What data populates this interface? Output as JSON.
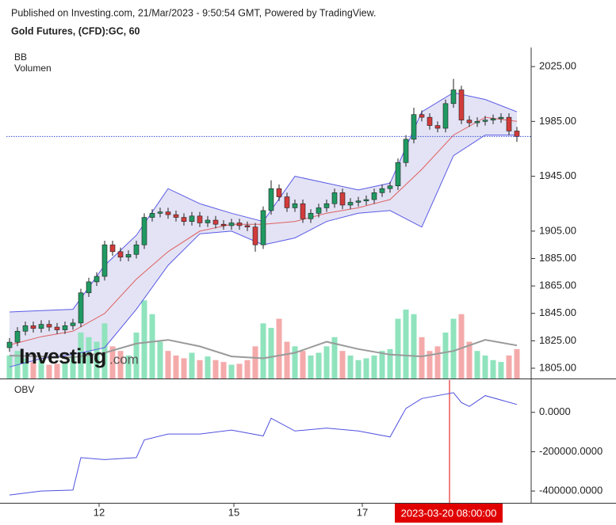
{
  "header": "Published on Investing.com, 21/Mar/2023 - 9:50:54 GMT, Powered by TradingView.",
  "watermark": [
    "Investing",
    ".com"
  ],
  "chart_data": [
    {
      "type": "candlestick",
      "title": "Gold Futures, (CFD):GC, 60",
      "legend": [
        "BB",
        "Volumen"
      ],
      "xlim": [
        -1.2,
        65.8
      ],
      "xticks": [
        {
          "value": 11.3,
          "label": "12"
        },
        {
          "value": 28.3,
          "label": "15"
        },
        {
          "value": 44.5,
          "label": "17"
        }
      ],
      "ylim": [
        1797.5,
        2038.9
      ],
      "yticks": [
        {
          "value": 1805,
          "label": "1805.00"
        },
        {
          "value": 1825,
          "label": "1825.00"
        },
        {
          "value": 1845,
          "label": "1845.00"
        },
        {
          "value": 1865,
          "label": "1865.00"
        },
        {
          "value": 1885,
          "label": "1885.00"
        },
        {
          "value": 1905,
          "label": "1905.00"
        },
        {
          "value": 1945,
          "label": "1945.00"
        },
        {
          "value": 1985,
          "label": "1985.00"
        },
        {
          "value": 2025,
          "label": "2025.00"
        }
      ],
      "up_color": "#1f9a62",
      "down_color": "#d23b3b",
      "ohlc": {
        "open": [
          1820,
          1824,
          1832,
          1836,
          1834,
          1837,
          1835,
          1833,
          1836,
          1838,
          1860,
          1868,
          1872,
          1895,
          1890,
          1886,
          1888,
          1895,
          1915,
          1918,
          1919,
          1917,
          1915,
          1912,
          1916,
          1911,
          1913,
          1910,
          1909,
          1911,
          1909,
          1908,
          1895,
          1920,
          1936,
          1930,
          1922,
          1925,
          1914,
          1918,
          1922,
          1925,
          1933,
          1924,
          1926,
          1927,
          1928,
          1933,
          1936,
          1938,
          1955,
          1972,
          1990,
          1988,
          1982,
          1980,
          1998,
          2008,
          1986,
          1984,
          1985,
          1986,
          1987,
          1988,
          1978
        ],
        "high": [
          1827,
          1835,
          1839,
          1839,
          1840,
          1840,
          1838,
          1839,
          1841,
          1863,
          1871,
          1875,
          1898,
          1898,
          1893,
          1891,
          1898,
          1918,
          1921,
          1922,
          1922,
          1920,
          1918,
          1919,
          1919,
          1916,
          1916,
          1913,
          1914,
          1914,
          1912,
          1911,
          1923,
          1942,
          1939,
          1933,
          1928,
          1928,
          1921,
          1925,
          1928,
          1936,
          1936,
          1929,
          1930,
          1931,
          1936,
          1939,
          1941,
          1958,
          1975,
          1995,
          1993,
          1991,
          1985,
          2001,
          2016,
          2011,
          1989,
          1988,
          1989,
          1990,
          1991,
          1991,
          1981
        ],
        "low": [
          1817,
          1821,
          1829,
          1831,
          1831,
          1832,
          1830,
          1830,
          1833,
          1835,
          1857,
          1865,
          1869,
          1887,
          1883,
          1883,
          1885,
          1892,
          1912,
          1915,
          1914,
          1912,
          1909,
          1909,
          1908,
          1908,
          1907,
          1906,
          1906,
          1906,
          1905,
          1890,
          1892,
          1917,
          1927,
          1919,
          1919,
          1911,
          1911,
          1915,
          1919,
          1922,
          1921,
          1921,
          1923,
          1924,
          1925,
          1930,
          1933,
          1935,
          1952,
          1969,
          1985,
          1979,
          1977,
          1977,
          1995,
          1983,
          1981,
          1981,
          1982,
          1983,
          1984,
          1975,
          1970
        ],
        "close": [
          1824,
          1832,
          1836,
          1834,
          1837,
          1835,
          1833,
          1836,
          1838,
          1860,
          1868,
          1872,
          1895,
          1890,
          1886,
          1888,
          1895,
          1915,
          1918,
          1919,
          1917,
          1915,
          1912,
          1916,
          1911,
          1913,
          1910,
          1909,
          1911,
          1909,
          1908,
          1895,
          1920,
          1936,
          1930,
          1922,
          1925,
          1914,
          1918,
          1922,
          1925,
          1933,
          1924,
          1926,
          1927,
          1928,
          1933,
          1936,
          1938,
          1955,
          1972,
          1990,
          1988,
          1982,
          1980,
          1998,
          2008,
          1986,
          1984,
          1985,
          1986,
          1987,
          1988,
          1978,
          1974
        ]
      },
      "last_line_color": "#3a4fd6",
      "bb": {
        "x": [
          0,
          4,
          8,
          12,
          16,
          20,
          24,
          28,
          32,
          36,
          40,
          44,
          48,
          52,
          56,
          60,
          64
        ],
        "upper": [
          1846,
          1847,
          1848,
          1880,
          1902,
          1936,
          1925,
          1918,
          1912,
          1945,
          1940,
          1935,
          1940,
          1992,
          2006,
          2001,
          1992
        ],
        "middle": [
          1822,
          1828,
          1832,
          1845,
          1870,
          1890,
          1905,
          1910,
          1910,
          1912,
          1918,
          1922,
          1928,
          1950,
          1975,
          1988,
          1985
        ],
        "lower": [
          1806,
          1812,
          1815,
          1820,
          1848,
          1880,
          1903,
          1905,
          1895,
          1900,
          1912,
          1918,
          1920,
          1908,
          1960,
          1975,
          1975
        ],
        "band_color": "#5a5ae6",
        "middle_color": "#e06060",
        "fill": "#dcdcf2"
      },
      "volume": {
        "vlim": [
          0,
          36000
        ],
        "up_color": "#8fe3bd",
        "down_color": "#f4aaaa",
        "values": [
          2500,
          3000,
          2200,
          1800,
          2000,
          1500,
          1600,
          1800,
          2500,
          5000,
          4500,
          4000,
          6000,
          3500,
          3000,
          2500,
          5000,
          8500,
          7000,
          4000,
          3000,
          2500,
          2200,
          2800,
          2000,
          2400,
          2000,
          1800,
          1500,
          1600,
          2000,
          3500,
          6000,
          5500,
          6500,
          4000,
          3500,
          3000,
          2500,
          2800,
          3500,
          4500,
          3000,
          2500,
          2000,
          2200,
          2500,
          3000,
          3200,
          6500,
          7500,
          7000,
          4500,
          3000,
          3500,
          5000,
          6500,
          7000,
          4000,
          3000,
          2500,
          2000,
          1800,
          2500,
          3200
        ],
        "ma": {
          "x": [
            0,
            4,
            8,
            12,
            16,
            20,
            24,
            28,
            32,
            36,
            40,
            44,
            48,
            52,
            56,
            60,
            64
          ],
          "values": [
            2500,
            2400,
            2300,
            2800,
            3800,
            4200,
            3500,
            2400,
            2200,
            2800,
            4000,
            3200,
            2600,
            2400,
            3000,
            4200,
            3600
          ],
          "color": "#9a9a9a"
        }
      },
      "crosshair": {
        "x": 55.5,
        "label": "2023-03-20 08:00:00",
        "color": "#e00000"
      }
    },
    {
      "type": "line",
      "legend": "OBV",
      "color": "#5050e0",
      "x": [
        0,
        4,
        8,
        9,
        12,
        16,
        17,
        20,
        24,
        28,
        32,
        33,
        36,
        40,
        44,
        48,
        50,
        52,
        56,
        57,
        58,
        60,
        64
      ],
      "values": [
        -420000,
        -400000,
        -395000,
        -230000,
        -240000,
        -230000,
        -140000,
        -110000,
        -110000,
        -90000,
        -120000,
        -30000,
        -95000,
        -80000,
        -95000,
        -125000,
        20000,
        70000,
        100000,
        50000,
        30000,
        85000,
        40000
      ],
      "ylim": [
        -460000,
        164000
      ],
      "yticks": [
        {
          "value": 0,
          "label": "0.0000"
        },
        {
          "value": -200000,
          "label": "-200000.0000"
        },
        {
          "value": -400000,
          "label": "-400000.0000"
        }
      ]
    }
  ]
}
